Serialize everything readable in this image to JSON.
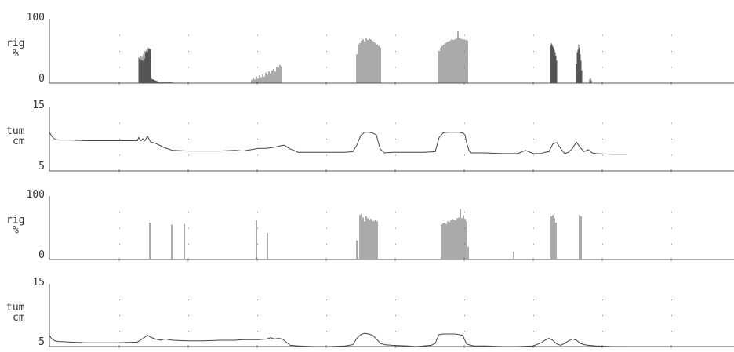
{
  "chart_data": [
    {
      "type": "bar",
      "ylabel_lines": [
        "rig",
        "%"
      ],
      "ylim": [
        0,
        100
      ],
      "ytick_labels": [
        "100",
        "0"
      ],
      "grid": "dotted",
      "x": [
        177,
        178,
        179,
        180,
        181,
        182,
        183,
        184,
        185,
        186,
        187,
        188,
        189,
        190,
        191,
        192,
        193,
        194,
        195,
        196,
        197,
        198,
        199,
        200,
        201,
        202,
        203,
        204,
        205,
        206,
        207,
        208,
        209,
        210,
        211,
        212,
        213,
        214,
        215,
        216,
        217,
        218,
        219,
        220,
        321,
        323,
        325,
        327,
        329,
        331,
        333,
        335,
        337,
        339,
        341,
        343,
        345,
        347,
        349,
        351,
        353,
        355,
        357,
        359,
        455,
        457,
        459,
        461,
        463,
        465,
        467,
        469,
        471,
        473,
        475,
        477,
        479,
        481,
        483,
        485,
        560,
        562,
        564,
        566,
        568,
        570,
        572,
        574,
        576,
        578,
        580,
        582,
        584,
        586,
        588,
        590,
        592,
        594,
        596,
        702,
        703,
        704,
        705,
        706,
        707,
        708,
        709,
        710,
        735,
        736,
        737,
        738,
        739,
        740,
        741,
        742,
        752,
        753,
        754
      ],
      "values": [
        40,
        38,
        42,
        36,
        41,
        35,
        45,
        38,
        50,
        48,
        52,
        49,
        55,
        53,
        54,
        52,
        8,
        6,
        6,
        5,
        5,
        4,
        4,
        3,
        3,
        2,
        2,
        1,
        1,
        1,
        1,
        1,
        1,
        1,
        1,
        1,
        1,
        1,
        1,
        1,
        1,
        1,
        1,
        1,
        5,
        8,
        6,
        10,
        7,
        12,
        9,
        14,
        10,
        16,
        13,
        18,
        15,
        20,
        22,
        18,
        25,
        24,
        28,
        26,
        45,
        60,
        62,
        66,
        68,
        65,
        70,
        67,
        69,
        68,
        66,
        64,
        62,
        60,
        58,
        55,
        50,
        55,
        58,
        60,
        62,
        64,
        65,
        66,
        68,
        67,
        68,
        69,
        80,
        70,
        69,
        68,
        68,
        67,
        66,
        58,
        62,
        60,
        57,
        55,
        52,
        48,
        42,
        35,
        30,
        48,
        52,
        60,
        55,
        45,
        35,
        20,
        6,
        8,
        4
      ]
    },
    {
      "type": "line",
      "ylabel_lines": [
        "tum",
        "cm"
      ],
      "ylim": [
        5,
        15
      ],
      "ytick_labels": [
        "15",
        "5"
      ],
      "grid": "dotted",
      "x": [
        63,
        66,
        70,
        75,
        90,
        110,
        130,
        150,
        175,
        177,
        180,
        182,
        185,
        188,
        192,
        198,
        205,
        210,
        215,
        220,
        240,
        260,
        280,
        300,
        310,
        320,
        330,
        340,
        350,
        358,
        362,
        365,
        370,
        375,
        380,
        400,
        420,
        440,
        450,
        455,
        460,
        465,
        470,
        475,
        480,
        482,
        485,
        490,
        500,
        520,
        540,
        555,
        560,
        565,
        570,
        575,
        580,
        585,
        590,
        593,
        595,
        598,
        600,
        605,
        620,
        640,
        660,
        670,
        680,
        690,
        695,
        700,
        705,
        710,
        715,
        720,
        725,
        730,
        735,
        740,
        745,
        750,
        755,
        760,
        780,
        800
      ],
      "values": [
        11.0,
        10.4,
        9.9,
        9.8,
        9.8,
        9.7,
        9.7,
        9.7,
        9.7,
        10.2,
        9.7,
        10.0,
        9.7,
        10.4,
        9.5,
        9.3,
        8.9,
        8.6,
        8.4,
        8.2,
        8.1,
        8.1,
        8.1,
        8.2,
        8.1,
        8.3,
        8.5,
        8.5,
        8.7,
        8.9,
        9.0,
        8.8,
        8.4,
        8.2,
        7.9,
        7.9,
        7.9,
        7.9,
        8.0,
        9.0,
        10.5,
        11.0,
        11.0,
        10.9,
        10.6,
        9.6,
        8.4,
        7.8,
        7.9,
        7.9,
        7.9,
        8.0,
        10.2,
        10.9,
        11.0,
        11.0,
        11.0,
        11.0,
        10.9,
        10.6,
        9.4,
        8.2,
        7.8,
        7.8,
        7.8,
        7.7,
        7.7,
        8.2,
        7.7,
        7.7,
        7.9,
        8.0,
        9.2,
        9.4,
        8.5,
        7.7,
        7.9,
        8.5,
        9.5,
        8.6,
        8.0,
        8.3,
        7.8,
        7.7,
        7.6,
        7.6
      ]
    },
    {
      "type": "bar",
      "ylabel_lines": [
        "rig",
        "%"
      ],
      "ylim": [
        0,
        100
      ],
      "ytick_labels": [
        "100",
        "0"
      ],
      "grid": "dotted",
      "x": [
        191,
        219,
        235,
        327,
        341,
        455,
        459,
        461,
        463,
        465,
        467,
        469,
        471,
        473,
        475,
        477,
        479,
        481,
        563,
        565,
        567,
        569,
        571,
        573,
        575,
        577,
        579,
        581,
        583,
        585,
        587,
        589,
        591,
        593,
        595,
        597,
        655,
        703,
        705,
        707,
        709,
        739,
        741
      ],
      "values": [
        58,
        55,
        56,
        62,
        42,
        30,
        70,
        72,
        66,
        60,
        68,
        65,
        62,
        64,
        60,
        61,
        63,
        60,
        55,
        57,
        58,
        56,
        60,
        59,
        62,
        64,
        63,
        62,
        65,
        66,
        80,
        65,
        70,
        64,
        60,
        20,
        12,
        68,
        70,
        65,
        58,
        70,
        68
      ]
    },
    {
      "type": "line",
      "ylabel_lines": [
        "tum",
        "cm"
      ],
      "ylim": [
        5,
        15
      ],
      "ytick_labels": [
        "15",
        "5"
      ],
      "grid": "dotted",
      "x": [
        63,
        66,
        70,
        75,
        90,
        110,
        130,
        150,
        175,
        180,
        185,
        188,
        192,
        198,
        205,
        210,
        220,
        240,
        260,
        280,
        300,
        310,
        320,
        330,
        340,
        345,
        350,
        355,
        360,
        365,
        370,
        380,
        400,
        420,
        440,
        450,
        455,
        460,
        465,
        470,
        475,
        480,
        485,
        490,
        500,
        520,
        530,
        540,
        550,
        555,
        558,
        560,
        565,
        570,
        575,
        580,
        585,
        590,
        595,
        600,
        605,
        620,
        640,
        660,
        680,
        690,
        695,
        700,
        705,
        710,
        715,
        720,
        725,
        730,
        735,
        740,
        745,
        750,
        760,
        780,
        800
      ],
      "values": [
        6.8,
        6.2,
        5.9,
        5.8,
        5.7,
        5.6,
        5.6,
        5.6,
        5.7,
        6.1,
        6.5,
        6.8,
        6.5,
        6.2,
        6.0,
        6.2,
        6.0,
        5.9,
        5.9,
        6.0,
        6.0,
        6.1,
        6.1,
        6.1,
        6.2,
        6.4,
        6.2,
        6.3,
        6.2,
        5.7,
        5.2,
        5.1,
        5.0,
        5.0,
        5.1,
        5.3,
        6.3,
        6.9,
        7.1,
        7.0,
        6.8,
        6.2,
        5.5,
        5.3,
        5.2,
        5.1,
        5.0,
        5.1,
        5.2,
        5.5,
        6.4,
        6.9,
        7.0,
        7.0,
        7.0,
        7.0,
        6.9,
        6.8,
        5.4,
        5.2,
        5.1,
        5.1,
        5.0,
        5.0,
        5.1,
        5.6,
        6.0,
        6.3,
        6.0,
        5.4,
        5.2,
        5.5,
        5.9,
        6.2,
        6.0,
        5.5,
        5.3,
        5.2,
        5.1,
        5.0,
        5.0
      ]
    }
  ]
}
